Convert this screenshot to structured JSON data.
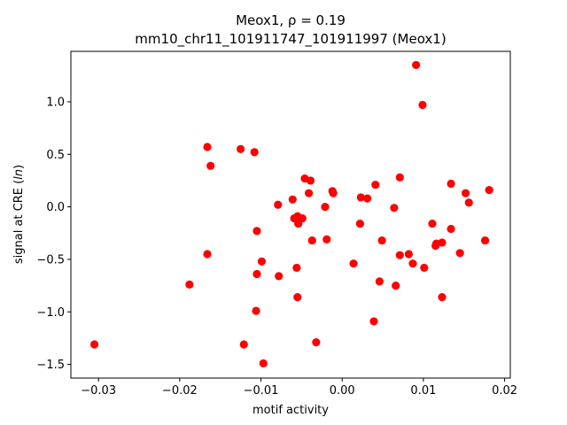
{
  "chart_data": {
    "type": "scatter",
    "title_line1": "Meox1, ρ = 0.19",
    "title_line2": "mm10_chr11_101911747_101911997 (Meox1)",
    "xlabel": "motif activity",
    "ylabel": "signal at CRE (ln)",
    "xlim": [
      -0.0334,
      0.0207
    ],
    "ylim": [
      -1.63,
      1.48
    ],
    "xticks": [
      -0.03,
      -0.02,
      -0.01,
      0.0,
      0.01,
      0.02
    ],
    "xtick_labels": [
      "−0.03",
      "−0.02",
      "−0.01",
      "0.00",
      "0.01",
      "0.02"
    ],
    "yticks": [
      -1.5,
      -1.0,
      -0.5,
      0.0,
      0.5,
      1.0
    ],
    "ytick_labels": [
      "−1.5",
      "−1.0",
      "−0.5",
      "0.0",
      "0.5",
      "1.0"
    ],
    "grid": false,
    "marker_color": "#ff0000",
    "points": [
      {
        "x": -0.0305,
        "y": -1.31
      },
      {
        "x": -0.0188,
        "y": -0.74
      },
      {
        "x": -0.0166,
        "y": 0.57
      },
      {
        "x": -0.0162,
        "y": 0.39
      },
      {
        "x": -0.0166,
        "y": -0.45
      },
      {
        "x": -0.0125,
        "y": 0.55
      },
      {
        "x": -0.0108,
        "y": 0.52
      },
      {
        "x": -0.0105,
        "y": -0.23
      },
      {
        "x": -0.0099,
        "y": -0.52
      },
      {
        "x": -0.0105,
        "y": -0.64
      },
      {
        "x": -0.0106,
        "y": -0.99
      },
      {
        "x": -0.0121,
        "y": -1.31
      },
      {
        "x": -0.0097,
        "y": -1.49
      },
      {
        "x": -0.0079,
        "y": 0.02
      },
      {
        "x": -0.0078,
        "y": -0.66
      },
      {
        "x": -0.0061,
        "y": 0.07
      },
      {
        "x": -0.0059,
        "y": -0.11
      },
      {
        "x": -0.0055,
        "y": -0.09
      },
      {
        "x": -0.0054,
        "y": -0.16
      },
      {
        "x": -0.0049,
        "y": -0.11
      },
      {
        "x": -0.0056,
        "y": -0.58
      },
      {
        "x": -0.0055,
        "y": -0.86
      },
      {
        "x": -0.0046,
        "y": 0.27
      },
      {
        "x": -0.0039,
        "y": 0.25
      },
      {
        "x": -0.0041,
        "y": 0.13
      },
      {
        "x": -0.0037,
        "y": -0.32
      },
      {
        "x": -0.0032,
        "y": -1.29
      },
      {
        "x": -0.0021,
        "y": 0.0
      },
      {
        "x": -0.0019,
        "y": -0.31
      },
      {
        "x": -0.0012,
        "y": 0.15
      },
      {
        "x": -0.0011,
        "y": 0.13
      },
      {
        "x": 0.0014,
        "y": -0.54
      },
      {
        "x": 0.0023,
        "y": 0.09
      },
      {
        "x": 0.0031,
        "y": 0.08
      },
      {
        "x": 0.0022,
        "y": -0.16
      },
      {
        "x": 0.0041,
        "y": 0.21
      },
      {
        "x": 0.0039,
        "y": -1.09
      },
      {
        "x": 0.0049,
        "y": -0.32
      },
      {
        "x": 0.0046,
        "y": -0.71
      },
      {
        "x": 0.0064,
        "y": -0.01
      },
      {
        "x": 0.0071,
        "y": 0.28
      },
      {
        "x": 0.0066,
        "y": -0.75
      },
      {
        "x": 0.0071,
        "y": -0.46
      },
      {
        "x": 0.0082,
        "y": -0.45
      },
      {
        "x": 0.0087,
        "y": -0.54
      },
      {
        "x": 0.0099,
        "y": 0.97
      },
      {
        "x": 0.0091,
        "y": 1.35
      },
      {
        "x": 0.0101,
        "y": -0.58
      },
      {
        "x": 0.0111,
        "y": -0.16
      },
      {
        "x": 0.0115,
        "y": -0.37
      },
      {
        "x": 0.0116,
        "y": -0.35
      },
      {
        "x": 0.0123,
        "y": -0.34
      },
      {
        "x": 0.0123,
        "y": -0.86
      },
      {
        "x": 0.0134,
        "y": 0.22
      },
      {
        "x": 0.0134,
        "y": -0.21
      },
      {
        "x": 0.0145,
        "y": -0.44
      },
      {
        "x": 0.0152,
        "y": 0.13
      },
      {
        "x": 0.0156,
        "y": 0.04
      },
      {
        "x": 0.0176,
        "y": -0.32
      },
      {
        "x": 0.0181,
        "y": 0.16
      }
    ]
  }
}
